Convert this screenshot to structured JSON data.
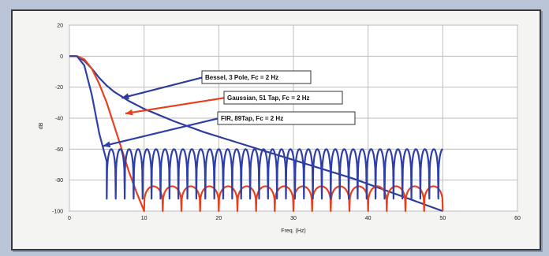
{
  "chart_data": {
    "type": "line",
    "title": "",
    "xlabel": "Freq. (Hz)",
    "ylabel": "dB",
    "xlim": [
      0,
      60
    ],
    "ylim": [
      -100,
      20
    ],
    "xticks": [
      0,
      10,
      20,
      30,
      40,
      50,
      60
    ],
    "yticks": [
      20,
      0,
      -20,
      -40,
      -60,
      -80,
      -100
    ],
    "grid": true,
    "legend": "none",
    "series": [
      {
        "name": "Bessel, 3 Pole, Fc = 2 Hz",
        "color": "#2e3d9a",
        "style": "smooth-rolloff",
        "x": [
          0,
          1,
          2,
          3,
          4,
          5,
          6,
          8,
          10,
          14,
          18,
          22,
          26,
          30,
          34,
          38,
          42,
          46,
          50
        ],
        "y": [
          0,
          0,
          -3,
          -8,
          -14,
          -19,
          -23,
          -29,
          -34,
          -42,
          -49,
          -55,
          -61,
          -67,
          -73,
          -79,
          -86,
          -93,
          -100
        ]
      },
      {
        "name": "Gaussian, 51 Tap, Fc = 2 Hz",
        "color": "#e8401c",
        "style": "rolloff-then-sidelobes",
        "mainlobe": {
          "x": [
            0,
            1,
            2,
            3,
            4,
            5,
            6,
            7,
            8,
            9,
            10
          ],
          "y": [
            0,
            0,
            -2,
            -8,
            -18,
            -30,
            -45,
            -60,
            -75,
            -88,
            -100
          ]
        },
        "sidelobes": {
          "start": 10,
          "end": 50,
          "period": 2.5,
          "peak": -84,
          "floor": -100
        }
      },
      {
        "name": "FIR, 89Tap, Fc = 2 Hz",
        "color": "#2f3fa8",
        "style": "steep-rolloff-then-sidelobes",
        "mainlobe": {
          "x": [
            0,
            1,
            2,
            3,
            4,
            5
          ],
          "y": [
            0,
            0,
            -6,
            -25,
            -50,
            -68
          ]
        },
        "sidelobes": {
          "start": 5,
          "end": 50,
          "period": 1.2,
          "peak": -60,
          "floor": -92
        }
      }
    ],
    "annotations": [
      {
        "series": 0,
        "label": "Bessel, 3 Pole, Fc = 2 Hz",
        "target": [
          7,
          -27
        ]
      },
      {
        "series": 1,
        "label": "Gaussian, 51 Tap, Fc = 2 Hz",
        "target": [
          7.5,
          -37
        ]
      },
      {
        "series": 2,
        "label": "FIR, 89Tap, Fc = 2 Hz",
        "target": [
          4.5,
          -58
        ]
      }
    ]
  }
}
